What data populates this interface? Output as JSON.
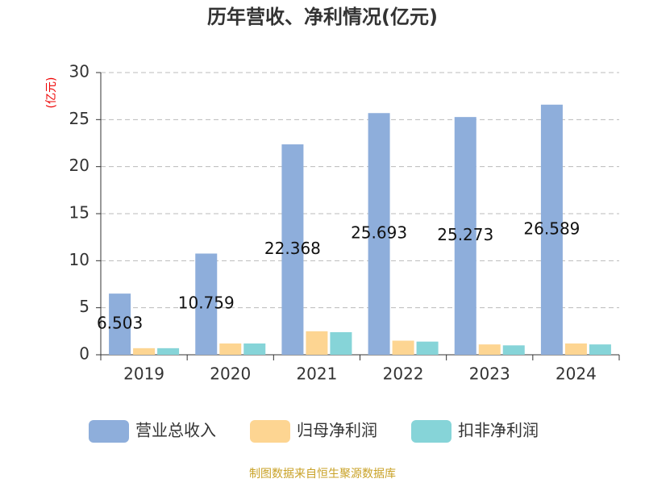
{
  "chart_data": {
    "type": "bar",
    "title": "历年营收、净利情况(亿元)",
    "y_label": "(亿元)",
    "source": "制图数据来自恒生聚源数据库",
    "categories": [
      "2019",
      "2020",
      "2021",
      "2022",
      "2023",
      "2024"
    ],
    "series": [
      {
        "name": "营业总收入",
        "color": "#8eaedb",
        "values": [
          6.503,
          10.759,
          22.368,
          25.693,
          25.273,
          26.589
        ],
        "show_labels": true
      },
      {
        "name": "归母净利润",
        "color": "#fdd592",
        "values": [
          0.7,
          1.2,
          2.5,
          1.5,
          1.1,
          1.2
        ]
      },
      {
        "name": "扣非净利润",
        "color": "#86d4d8",
        "values": [
          0.7,
          1.2,
          2.4,
          1.4,
          1.0,
          1.1
        ]
      }
    ],
    "ylim": [
      0,
      30
    ],
    "yticks": [
      0,
      5,
      10,
      15,
      20,
      25,
      30
    ],
    "grid": true
  }
}
